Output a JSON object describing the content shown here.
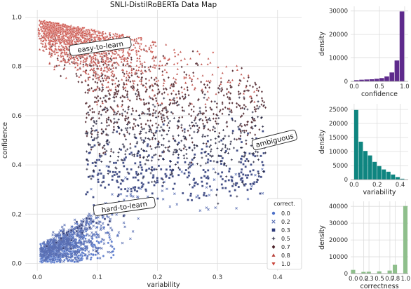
{
  "chart_data": [
    {
      "id": "main",
      "type": "scatter",
      "title": "SNLI-DistilRoBERTa Data Map",
      "xlabel": "variability",
      "ylabel": "confidence",
      "xlim": [
        -0.02,
        0.44
      ],
      "ylim": [
        -0.03,
        1.03
      ],
      "xticks": [
        0.0,
        0.1,
        0.2,
        0.3,
        0.4
      ],
      "xtick_labels": [
        "0.0",
        "0.1",
        "0.2",
        "0.3",
        "0.4"
      ],
      "yticks": [
        0.0,
        0.2,
        0.4,
        0.6,
        0.8,
        1.0
      ],
      "ytick_labels": [
        "0.0",
        "0.2",
        "0.4",
        "0.6",
        "0.8",
        "1.0"
      ],
      "grid": true,
      "legend": {
        "title": "correct.",
        "placement": "lower-right",
        "entries": [
          {
            "label": "0.0",
            "marker": "circle",
            "color": "#4f72c9"
          },
          {
            "label": "0.2",
            "marker": "x",
            "color": "#5a6fb3"
          },
          {
            "label": "0.3",
            "marker": "square",
            "color": "#2f3c7a"
          },
          {
            "label": "0.5",
            "marker": "plus",
            "color": "#1f1f3a"
          },
          {
            "label": "0.7",
            "marker": "diamond",
            "color": "#4a1f26"
          },
          {
            "label": "0.8",
            "marker": "triangle-up",
            "color": "#b8413a"
          },
          {
            "label": "1.0",
            "marker": "triangle-down",
            "color": "#c9443a"
          }
        ]
      },
      "annotations": [
        {
          "text": "easy-to-learn",
          "x": 0.105,
          "y": 0.88,
          "rotation": -8
        },
        {
          "text": "ambiguous",
          "x": 0.395,
          "y": 0.5,
          "rotation": -14
        },
        {
          "text": "hard-to-learn",
          "x": 0.145,
          "y": 0.23,
          "rotation": -8
        }
      ]
    },
    {
      "id": "confidence-hist",
      "type": "bar",
      "xlabel": "confidence",
      "ylabel": "density",
      "color": "#5e2a8c",
      "x": [
        0.05,
        0.15,
        0.25,
        0.35,
        0.45,
        0.55,
        0.65,
        0.75,
        0.85,
        0.95
      ],
      "values": [
        500,
        700,
        800,
        900,
        1100,
        1400,
        2100,
        3800,
        8900,
        29800
      ],
      "xlim": [
        -0.07,
        1.07
      ],
      "ylim": [
        0,
        32000
      ],
      "xticks": [
        0.0,
        0.5,
        1.0
      ],
      "xtick_labels": [
        "0.0",
        "0.5",
        "1.0"
      ],
      "yticks": [
        0,
        10000,
        20000,
        30000
      ],
      "ytick_labels": [
        "0",
        "10000",
        "20000",
        "30000"
      ]
    },
    {
      "id": "variability-hist",
      "type": "bar",
      "xlabel": "variability",
      "ylabel": "density",
      "color": "#0f8580",
      "x": [
        0.02,
        0.06,
        0.1,
        0.14,
        0.18,
        0.22,
        0.26,
        0.3,
        0.34,
        0.38,
        0.42
      ],
      "values": [
        24800,
        13500,
        10200,
        8600,
        6300,
        4800,
        3600,
        2800,
        1800,
        900,
        300
      ],
      "xlim": [
        -0.03,
        0.47
      ],
      "ylim": [
        0,
        27000
      ],
      "xticks": [
        0.0,
        0.2,
        0.4
      ],
      "xtick_labels": [
        "0.0",
        "0.2",
        "0.4"
      ],
      "yticks": [
        0,
        5000,
        10000,
        15000,
        20000,
        25000
      ],
      "ytick_labels": [
        "0",
        "5000",
        "10000",
        "15000",
        "20000",
        "25000"
      ]
    },
    {
      "id": "correctness-hist",
      "type": "bar",
      "xlabel": "correctness",
      "ylabel": "density",
      "color": "#8fbf8c",
      "x": [
        0.0,
        0.2,
        0.3,
        0.5,
        0.7,
        0.8,
        1.0
      ],
      "values": [
        2200,
        1000,
        1100,
        1300,
        1800,
        5200,
        40200
      ],
      "xlim": [
        -0.05,
        1.05
      ],
      "ylim": [
        0,
        43000
      ],
      "xticks": [
        0.0,
        0.2,
        0.3,
        0.5,
        0.7,
        0.8,
        1.0
      ],
      "xtick_labels": [
        "0.0",
        "0.2",
        "0.3",
        "0.5",
        "0.7",
        "0.8",
        "1.0"
      ],
      "yticks": [
        0,
        10000,
        20000,
        30000,
        40000
      ],
      "ytick_labels": [
        "0",
        "10000",
        "20000",
        "30000",
        "40000"
      ]
    }
  ]
}
